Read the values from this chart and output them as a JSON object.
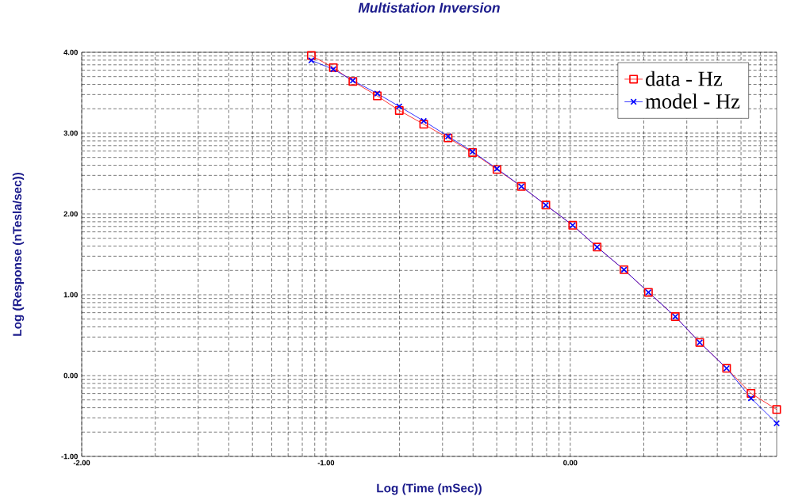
{
  "chart_data": {
    "type": "line",
    "title": "Multistation Inversion",
    "xlabel": "Log (Time (mSec))",
    "ylabel": "Log (Response (nTesla/sec))",
    "xlim": [
      -2,
      0.845
    ],
    "ylim": [
      -1,
      4
    ],
    "xticks": [
      {
        "value": -2,
        "label": "-2.00"
      },
      {
        "value": -1,
        "label": "-1.00"
      },
      {
        "value": 0,
        "label": "0.00"
      },
      {
        "value": -1.699,
        "label": null
      },
      {
        "value": -1.523,
        "label": null
      },
      {
        "value": -1.398,
        "label": null
      },
      {
        "value": -1.301,
        "label": null
      },
      {
        "value": -1.222,
        "label": null
      },
      {
        "value": -1.155,
        "label": null
      },
      {
        "value": -1.097,
        "label": null
      },
      {
        "value": -1.046,
        "label": null
      },
      {
        "value": -0.699,
        "label": null
      },
      {
        "value": -0.523,
        "label": null
      },
      {
        "value": -0.398,
        "label": null
      },
      {
        "value": -0.301,
        "label": null
      },
      {
        "value": -0.222,
        "label": null
      },
      {
        "value": -0.155,
        "label": null
      },
      {
        "value": -0.097,
        "label": null
      },
      {
        "value": -0.046,
        "label": null
      },
      {
        "value": 0.301,
        "label": null
      },
      {
        "value": 0.477,
        "label": null
      },
      {
        "value": 0.602,
        "label": null
      },
      {
        "value": 0.699,
        "label": null
      },
      {
        "value": 0.778,
        "label": null
      }
    ],
    "yticks": [
      {
        "value": -1,
        "label": "-1.00"
      },
      {
        "value": 0,
        "label": "0.00"
      },
      {
        "value": 1,
        "label": "1.00"
      },
      {
        "value": 2,
        "label": "2.00"
      },
      {
        "value": 3,
        "label": "3.00"
      },
      {
        "value": 4,
        "label": "4.00"
      },
      {
        "value": -0.699,
        "label": null
      },
      {
        "value": -0.523,
        "label": null
      },
      {
        "value": -0.398,
        "label": null
      },
      {
        "value": -0.301,
        "label": null
      },
      {
        "value": -0.222,
        "label": null
      },
      {
        "value": -0.155,
        "label": null
      },
      {
        "value": -0.097,
        "label": null
      },
      {
        "value": -0.046,
        "label": null
      },
      {
        "value": 0.301,
        "label": null
      },
      {
        "value": 0.477,
        "label": null
      },
      {
        "value": 0.602,
        "label": null
      },
      {
        "value": 0.699,
        "label": null
      },
      {
        "value": 0.778,
        "label": null
      },
      {
        "value": 0.845,
        "label": null
      },
      {
        "value": 0.903,
        "label": null
      },
      {
        "value": 0.954,
        "label": null
      },
      {
        "value": 1.301,
        "label": null
      },
      {
        "value": 1.477,
        "label": null
      },
      {
        "value": 1.602,
        "label": null
      },
      {
        "value": 1.699,
        "label": null
      },
      {
        "value": 1.778,
        "label": null
      },
      {
        "value": 1.845,
        "label": null
      },
      {
        "value": 1.903,
        "label": null
      },
      {
        "value": 1.954,
        "label": null
      },
      {
        "value": 2.301,
        "label": null
      },
      {
        "value": 2.477,
        "label": null
      },
      {
        "value": 2.602,
        "label": null
      },
      {
        "value": 2.699,
        "label": null
      },
      {
        "value": 2.778,
        "label": null
      },
      {
        "value": 2.845,
        "label": null
      },
      {
        "value": 2.903,
        "label": null
      },
      {
        "value": 2.954,
        "label": null
      },
      {
        "value": 3.301,
        "label": null
      },
      {
        "value": 3.477,
        "label": null
      },
      {
        "value": 3.602,
        "label": null
      },
      {
        "value": 3.699,
        "label": null
      },
      {
        "value": 3.778,
        "label": null
      },
      {
        "value": 3.845,
        "label": null
      },
      {
        "value": 3.903,
        "label": null
      },
      {
        "value": 3.954,
        "label": null
      }
    ],
    "x": [
      -1.06,
      -0.97,
      -0.89,
      -0.79,
      -0.7,
      -0.6,
      -0.5,
      -0.4,
      -0.3,
      -0.2,
      -0.1,
      0.01,
      0.11,
      0.22,
      0.32,
      0.43,
      0.53,
      0.64,
      0.74,
      0.845
    ],
    "series": [
      {
        "name": "data - Hz",
        "color": "#ff0000",
        "marker": "square",
        "values": [
          3.96,
          3.81,
          3.64,
          3.46,
          3.28,
          3.11,
          2.94,
          2.76,
          2.55,
          2.34,
          2.11,
          1.86,
          1.59,
          1.31,
          1.03,
          0.73,
          0.41,
          0.09,
          -0.22,
          -0.42
        ]
      },
      {
        "name": "model - Hz",
        "color": "#0000ff",
        "marker": "cross",
        "values": [
          3.9,
          3.79,
          3.65,
          3.49,
          3.33,
          3.15,
          2.96,
          2.77,
          2.56,
          2.34,
          2.11,
          1.86,
          1.59,
          1.31,
          1.03,
          0.73,
          0.41,
          0.09,
          -0.28,
          -0.59
        ]
      }
    ],
    "grid": true,
    "legend": "top right",
    "line_style": "solid"
  }
}
